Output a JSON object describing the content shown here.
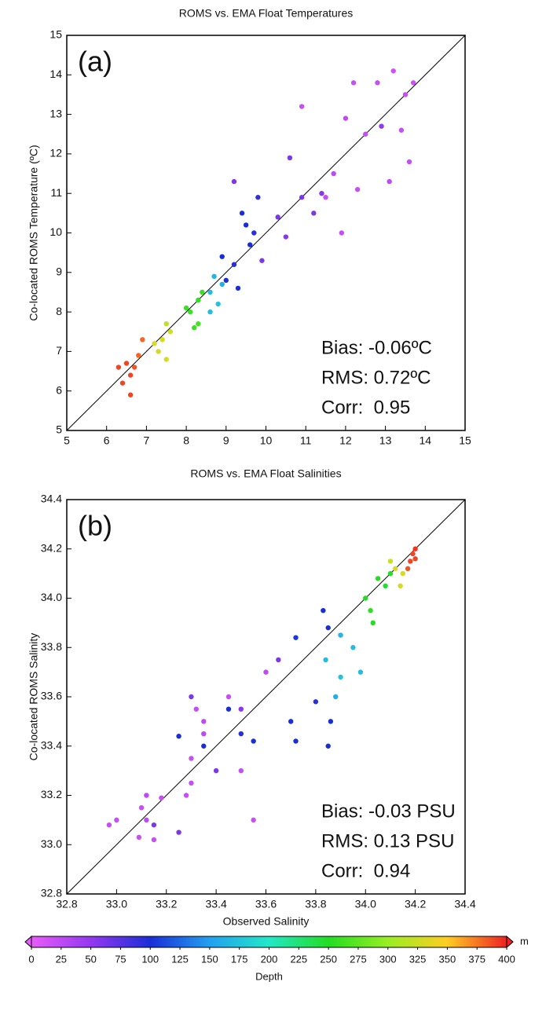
{
  "chart_data": [
    {
      "type": "scatter",
      "title": "ROMS vs. EMA Float Temperatures",
      "y_label": "Co-located ROMS Temperature (ºC)",
      "panel_label": "(a)",
      "annotations": [
        "Bias: -0.06ºC",
        "RMS: 0.72ºC",
        "Corr:  0.95"
      ],
      "xlim": [
        5,
        15
      ],
      "ylim": [
        5,
        15
      ],
      "xticks": [
        5,
        6,
        7,
        8,
        9,
        10,
        11,
        12,
        13,
        14,
        15
      ],
      "yticks": [
        5,
        6,
        7,
        8,
        9,
        10,
        11,
        12,
        13,
        14,
        15
      ],
      "x": [
        6.3,
        6.5,
        6.6,
        6.4,
        6.8,
        6.9,
        6.6,
        6.7,
        7.3,
        7.4,
        7.5,
        7.6,
        7.5,
        7.2,
        8.1,
        8.2,
        8.3,
        8.4,
        8.3,
        8.0,
        8.6,
        8.7,
        8.8,
        8.6,
        8.9,
        8.9,
        9.0,
        9.2,
        9.3,
        9.5,
        9.7,
        9.4,
        9.8,
        9.6,
        9.2,
        9.9,
        10.3,
        10.5,
        10.9,
        10.6,
        11.4,
        11.2,
        12.9,
        10.9,
        11.5,
        11.9,
        12.0,
        12.3,
        12.8,
        13.2,
        13.5,
        13.6,
        13.7,
        13.1,
        12.5,
        13.4,
        11.7,
        12.2
      ],
      "values": [
        6.6,
        6.7,
        6.4,
        6.2,
        6.9,
        7.3,
        5.9,
        6.6,
        7.0,
        7.3,
        7.7,
        7.5,
        6.8,
        7.2,
        8.0,
        7.6,
        8.3,
        8.5,
        7.7,
        8.1,
        8.5,
        8.9,
        8.2,
        8.0,
        8.7,
        9.4,
        8.8,
        9.2,
        8.6,
        10.2,
        10.0,
        10.5,
        10.9,
        9.7,
        11.3,
        9.3,
        10.4,
        9.9,
        10.9,
        11.9,
        11.0,
        10.5,
        12.7,
        13.2,
        10.9,
        10.0,
        12.9,
        11.1,
        13.8,
        14.1,
        13.5,
        11.8,
        13.8,
        11.3,
        12.5,
        12.6,
        11.5,
        13.8
      ],
      "depth": [
        390,
        390,
        390,
        390,
        380,
        380,
        390,
        385,
        330,
        330,
        320,
        325,
        330,
        330,
        260,
        260,
        255,
        260,
        265,
        260,
        170,
        165,
        175,
        170,
        160,
        100,
        100,
        95,
        100,
        100,
        95,
        100,
        90,
        100,
        60,
        60,
        60,
        55,
        60,
        60,
        55,
        60,
        50,
        20,
        20,
        20,
        25,
        20,
        20,
        15,
        20,
        20,
        15,
        25,
        20,
        20,
        25,
        20
      ]
    },
    {
      "type": "scatter",
      "title": "ROMS vs. EMA Float Salinities",
      "x_label": "Observed Salinity",
      "y_label": "Co-located ROMS Salinity",
      "panel_label": "(b)",
      "annotations": [
        "Bias: -0.03 PSU",
        "RMS: 0.13 PSU",
        "Corr:  0.94"
      ],
      "xlim": [
        32.8,
        34.4
      ],
      "ylim": [
        32.8,
        34.4
      ],
      "xticks": [
        32.8,
        {
          "value": 33,
          "label": "33.0"
        },
        33.2,
        33.4,
        33.6,
        33.8,
        {
          "value": 34,
          "label": "34.0"
        },
        34.2,
        34.4
      ],
      "yticks": [
        32.8,
        {
          "value": 33,
          "label": "33.0"
        },
        33.2,
        33.4,
        33.6,
        33.8,
        {
          "value": 34,
          "label": "34.0"
        },
        34.2,
        34.4
      ],
      "x": [
        32.97,
        33.0,
        33.1,
        33.12,
        33.15,
        33.09,
        33.12,
        33.28,
        33.3,
        33.32,
        33.35,
        33.5,
        33.55,
        33.6,
        33.3,
        33.35,
        33.18,
        33.45,
        33.3,
        33.4,
        33.5,
        33.65,
        33.25,
        33.15,
        33.25,
        33.35,
        33.45,
        33.5,
        33.55,
        33.7,
        33.72,
        33.8,
        33.85,
        33.86,
        33.72,
        33.83,
        33.85,
        33.84,
        33.9,
        33.95,
        33.88,
        33.98,
        33.9,
        34.0,
        34.05,
        34.08,
        34.02,
        34.1,
        34.03,
        34.12,
        34.15,
        34.1,
        34.14,
        34.18,
        34.2,
        34.19,
        34.17,
        34.2
      ],
      "values": [
        33.08,
        33.1,
        33.15,
        33.1,
        33.02,
        33.03,
        33.2,
        33.2,
        33.35,
        33.55,
        33.5,
        33.3,
        33.1,
        33.7,
        33.25,
        33.45,
        33.19,
        33.6,
        33.6,
        33.3,
        33.55,
        33.75,
        33.05,
        33.08,
        33.44,
        33.4,
        33.55,
        33.45,
        33.42,
        33.5,
        33.42,
        33.58,
        33.4,
        33.5,
        33.84,
        33.95,
        33.88,
        33.75,
        33.85,
        33.8,
        33.6,
        33.7,
        33.68,
        34.0,
        34.08,
        34.05,
        33.95,
        34.1,
        33.9,
        34.12,
        34.1,
        34.15,
        34.05,
        34.15,
        34.2,
        34.18,
        34.12,
        34.16
      ],
      "depth": [
        20,
        20,
        20,
        25,
        20,
        20,
        25,
        20,
        20,
        20,
        25,
        20,
        20,
        25,
        20,
        25,
        20,
        20,
        60,
        60,
        55,
        60,
        60,
        60,
        100,
        100,
        100,
        95,
        100,
        100,
        100,
        95,
        100,
        100,
        105,
        100,
        100,
        170,
        165,
        170,
        160,
        170,
        175,
        250,
        250,
        245,
        255,
        250,
        250,
        330,
        330,
        325,
        330,
        390,
        395,
        390,
        385,
        390
      ]
    },
    {
      "type": "colorbar",
      "label": "Depth",
      "unit": "m",
      "lim": [
        0,
        400
      ],
      "ticks": [
        0,
        25,
        50,
        75,
        100,
        125,
        150,
        175,
        200,
        225,
        250,
        275,
        300,
        325,
        350,
        375,
        400
      ],
      "colors": [
        "#e85cf9",
        "#9438f0",
        "#1a2ed8",
        "#22a0f0",
        "#22e8c8",
        "#22dd22",
        "#99ee22",
        "#ffcc22",
        "#ee2222"
      ]
    }
  ]
}
